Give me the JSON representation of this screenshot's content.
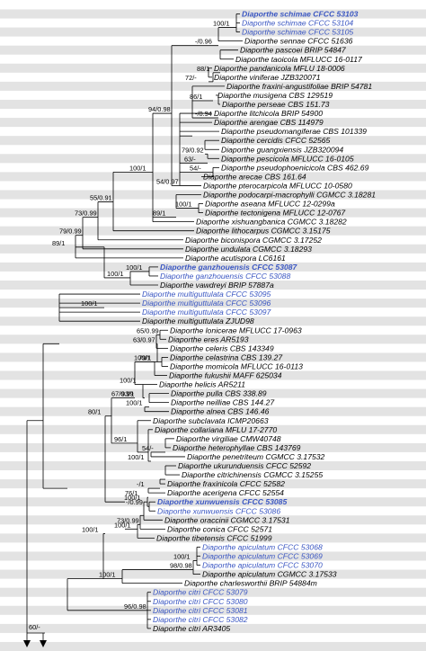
{
  "colors": {
    "new_taxon": "#3a56c2",
    "band": "#e3e3e3",
    "line": "#000000",
    "background": "#ffffff"
  },
  "taxa": [
    {
      "name": "Diaporthe schimae",
      "strain": "CFCC 53103",
      "new": true,
      "bold": true
    },
    {
      "name": "Diaporthe schimae",
      "strain": "CFCC 53104",
      "new": true
    },
    {
      "name": "Diaporthe schimae",
      "strain": "CFCC 53105",
      "new": true
    },
    {
      "name": "Diaporthe sennae",
      "strain": "CFCC 51636"
    },
    {
      "name": "Diaporthe pascoei",
      "strain": "BRIP 54847"
    },
    {
      "name": "Diaporthe taoicola",
      "strain": "MFLUCC 16-0117"
    },
    {
      "name": "Diaporthe pandanicola",
      "strain": "MFLU 18-0006"
    },
    {
      "name": "Diaporthe viniferae",
      "strain": "JZB320071"
    },
    {
      "name": "Diaporthe fraxini-angustifoliae",
      "strain": "BRIP 54781"
    },
    {
      "name": "Diaporthe musigena",
      "strain": "CBS 129519"
    },
    {
      "name": "Diaporthe perseae",
      "strain": "CBS 151.73"
    },
    {
      "name": "Diaporthe litchicola",
      "strain": "BRIP 54900"
    },
    {
      "name": "Diaporthe arengae",
      "strain": "CBS 114979"
    },
    {
      "name": "Diaporthe pseudomangiferae",
      "strain": "CBS 101339"
    },
    {
      "name": "Diaporthe cercidis",
      "strain": "CFCC 52565"
    },
    {
      "name": "Diaporthe guangxiensis",
      "strain": "JZB320094"
    },
    {
      "name": "Diaporthe pescicola",
      "strain": "MFLUCC 16-0105"
    },
    {
      "name": "Diaporthe pseudophoenicicola",
      "strain": "CBS 462.69"
    },
    {
      "name": "Diaporthe arecae",
      "strain": "CBS 161.64"
    },
    {
      "name": "Diaporthe pterocarpicola",
      "strain": "MFLUCC 10-0580"
    },
    {
      "name": "Diaporthe podocarpi-macrophylli",
      "strain": "CGMCC 3.18281"
    },
    {
      "name": "Diaporthe aseana",
      "strain": "MFLUCC 12-0299a"
    },
    {
      "name": "Diaporthe tectonigena",
      "strain": "MFLUCC 12-0767"
    },
    {
      "name": "Diaporthe xishuangbanica",
      "strain": "CGMCC 3.18282"
    },
    {
      "name": "Diaporthe lithocarpus",
      "strain": "CGMCC 3.15175"
    },
    {
      "name": "Diaporthe biconispora",
      "strain": "CGMCC 3.17252"
    },
    {
      "name": "Diaporthe undulata",
      "strain": "CGMCC 3.18293"
    },
    {
      "name": "Diaporthe acutispora",
      "strain": "LC6161"
    },
    {
      "name": "Diaporthe ganzhouensis",
      "strain": "CFCC 53087",
      "new": true,
      "bold": true
    },
    {
      "name": "Diaporthe ganzhouensis",
      "strain": "CFCC 53088",
      "new": true
    },
    {
      "name": "Diaporthe vawdreyi",
      "strain": "BRIP 57887a"
    },
    {
      "name": "Diaporthe multiguttulata",
      "strain": "CFCC 53095",
      "new": true
    },
    {
      "name": "Diaporthe multiguttulata",
      "strain": "CFCC 53096",
      "new": true
    },
    {
      "name": "Diaporthe multiguttulata",
      "strain": "CFCC 53097",
      "new": true
    },
    {
      "name": "Diaporthe multiguttulata",
      "strain": "ZJUD98"
    },
    {
      "name": "Diaporthe lonicerae",
      "strain": "MFLUCC 17-0963"
    },
    {
      "name": "Diaporthe eres",
      "strain": "AR5193"
    },
    {
      "name": "Diaporthe celeris",
      "strain": "CBS 143349"
    },
    {
      "name": "Diaporthe celastrina",
      "strain": "CBS 139.27"
    },
    {
      "name": "Diaporthe momicola",
      "strain": "MFLUCC 16-0113"
    },
    {
      "name": "Diaporthe fukushii",
      "strain": "MAFF 625034"
    },
    {
      "name": "Diaporthe helicis",
      "strain": "AR5211"
    },
    {
      "name": "Diaporthe pulla",
      "strain": "CBS 338.89"
    },
    {
      "name": "Diaporthe neilliae",
      "strain": "CBS 144.27"
    },
    {
      "name": "Diaporthe alnea",
      "strain": "CBS 146.46"
    },
    {
      "name": "Diaporthe subclavata",
      "strain": "ICMP20663"
    },
    {
      "name": "Diaporthe collariana",
      "strain": "MFLU 17-2770"
    },
    {
      "name": "Diaporthe virgiliae",
      "strain": "CMW40748"
    },
    {
      "name": "Diaporthe heterophyllae",
      "strain": "CBS 143769"
    },
    {
      "name": "Diaporthe penetriteum",
      "strain": "CGMCC 3.17532"
    },
    {
      "name": "Diaporthe ukurunduensis",
      "strain": "CFCC 52592"
    },
    {
      "name": "Diaporthe citrichinensis",
      "strain": "CGMCC 3.15255"
    },
    {
      "name": "Diaporthe fraxinicola",
      "strain": "CFCC 52582"
    },
    {
      "name": "Diaporthe acerigena",
      "strain": "CFCC 52554"
    },
    {
      "name": "Diaporthe xunwuensis",
      "strain": "CFCC 53085",
      "new": true,
      "bold": true
    },
    {
      "name": "Diaporthe xunwuensis",
      "strain": "CFCC 53086",
      "new": true
    },
    {
      "name": "Diaporthe oraccinii",
      "strain": "CGMCC 3.17531"
    },
    {
      "name": "Diaporthe conica",
      "strain": "CFCC 52571"
    },
    {
      "name": "Diaporthe tibetensis",
      "strain": "CFCC 51999"
    },
    {
      "name": "Diaporthe apiculatum",
      "strain": "CFCC 53068",
      "new": true
    },
    {
      "name": "Diaporthe apiculatum",
      "strain": "CFCC 53069",
      "new": true
    },
    {
      "name": "Diaporthe apiculatum",
      "strain": "CFCC 53070",
      "new": true
    },
    {
      "name": "Diaporthe apiculatum",
      "strain": "CGMCC 3.17533"
    },
    {
      "name": "Diaporthe charlesworthii",
      "strain": "BRIP 54884m"
    },
    {
      "name": "Diaporthe citri",
      "strain": "CFCC 53079",
      "new": true
    },
    {
      "name": "Diaporthe citri",
      "strain": "CFCC 53080",
      "new": true
    },
    {
      "name": "Diaporthe citri",
      "strain": "CFCC 53081",
      "new": true
    },
    {
      "name": "Diaporthe citri",
      "strain": "CFCC 53082",
      "new": true
    },
    {
      "name": "Diaporthe citri",
      "strain": "AR3405"
    }
  ],
  "supports": [
    "100/1",
    "-/0.96",
    "72/-",
    "86/1",
    "-/0.94",
    "54/0.97",
    "79/0.92",
    "63/-",
    "54/-",
    "94/0.98",
    "88/1",
    "100/1",
    "89/1",
    "100/1",
    "79/0.99",
    "73/0.99",
    "55/0.91",
    "89/1",
    "100/1",
    "100/1",
    "100/1",
    "65/0.99",
    "63/0.97",
    "79/1",
    "100/1",
    "93/1",
    "100/1",
    "100/1",
    "67/0.99",
    "54/-",
    "100/1",
    "96/1",
    "80/1",
    "76/1",
    "-/1",
    "-/0.99",
    "100/1",
    "73/0.99",
    "100/1",
    "100/1",
    "98/0.98",
    "100/1",
    "96/0.98",
    "100/1",
    "60/-"
  ]
}
